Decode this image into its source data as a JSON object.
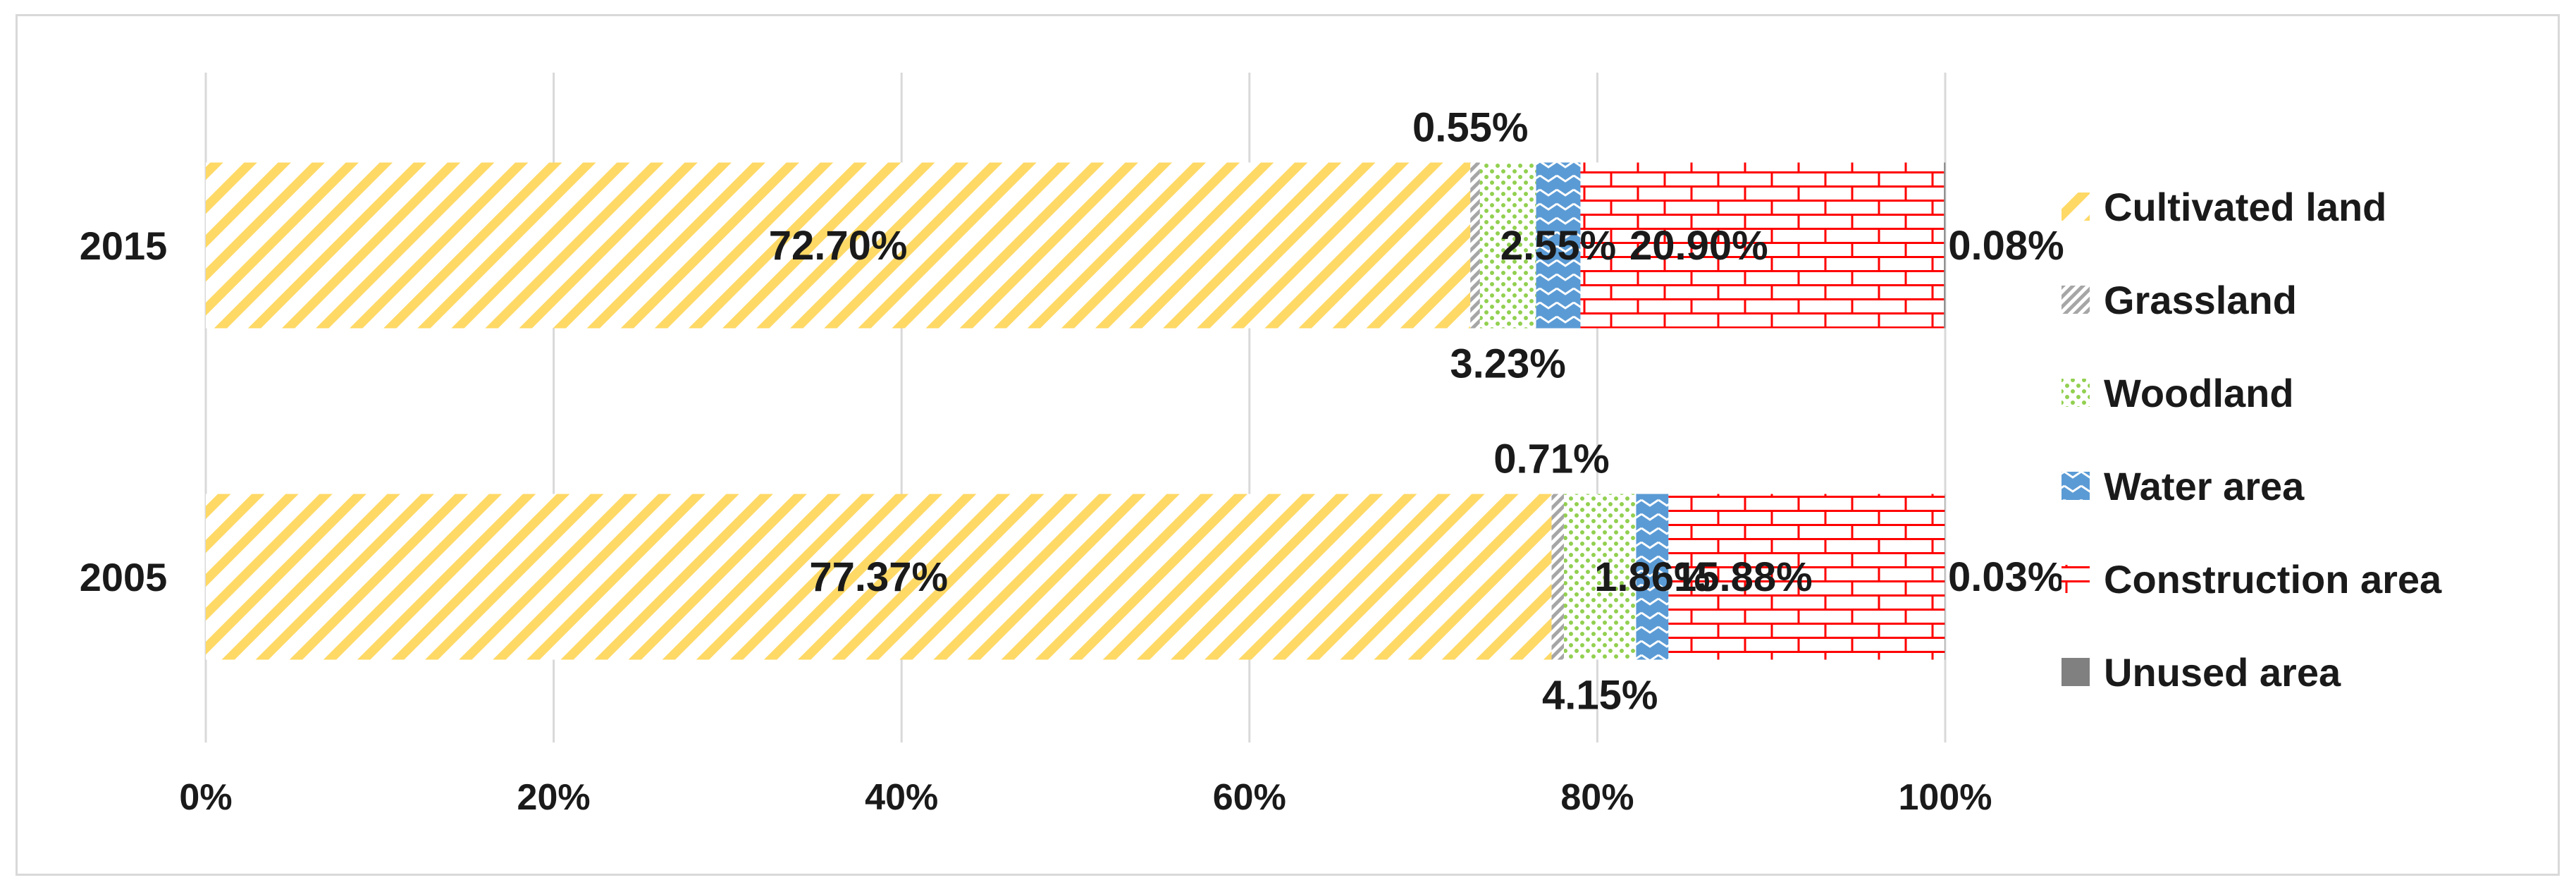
{
  "chart_data": {
    "type": "bar",
    "orientation": "horizontal",
    "stacked": true,
    "percent_stacked": true,
    "title": "",
    "xlabel": "",
    "ylabel": "",
    "xlim": [
      0,
      100
    ],
    "x_ticks": [
      "0%",
      "20%",
      "40%",
      "60%",
      "80%",
      "100%"
    ],
    "grid": "vertical",
    "legend_position": "right",
    "categories": [
      "2015",
      "2005"
    ],
    "series": [
      {
        "name": "Cultivated land",
        "values": [
          72.7,
          77.37
        ],
        "labels": [
          "72.70%",
          "77.37%"
        ],
        "color": "#ffd966",
        "pattern": "diagonal-stripes"
      },
      {
        "name": "Grassland",
        "values": [
          0.55,
          0.71
        ],
        "labels": [
          "0.55%",
          "0.71%"
        ],
        "color": "#a6a6a6",
        "pattern": "dense-diagonal"
      },
      {
        "name": "Woodland",
        "values": [
          3.23,
          4.15
        ],
        "labels": [
          "3.23%",
          "4.15%"
        ],
        "color": "#92d050",
        "pattern": "dots"
      },
      {
        "name": "Water area",
        "values": [
          2.55,
          1.86
        ],
        "labels": [
          "2.55%",
          "1.86%"
        ],
        "color": "#5b9bd5",
        "pattern": "zigzag"
      },
      {
        "name": "Construction area",
        "values": [
          20.9,
          15.88
        ],
        "labels": [
          "20.90%",
          "15.88%"
        ],
        "color": "#ff0000",
        "pattern": "brick"
      },
      {
        "name": "Unused area",
        "values": [
          0.08,
          0.03
        ],
        "labels": [
          "0.08%",
          "0.03%"
        ],
        "color": "#808080",
        "pattern": "solid"
      }
    ]
  }
}
